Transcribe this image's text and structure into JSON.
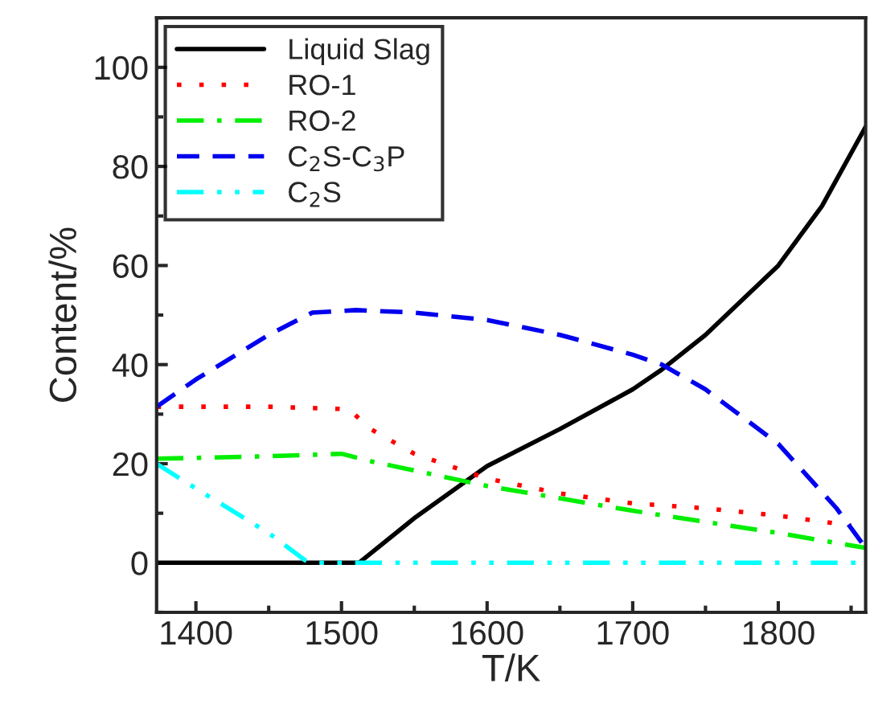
{
  "chart_data": {
    "type": "line",
    "xlabel": "T/K",
    "ylabel": "Content/%",
    "xlim": [
      1373,
      1860
    ],
    "ylim": [
      -10,
      110
    ],
    "xticks": [
      1400,
      1500,
      1600,
      1700,
      1800
    ],
    "yticks": [
      0,
      20,
      40,
      60,
      80,
      100
    ],
    "grid": false,
    "legend": "top left",
    "series": [
      {
        "name": "Liquid Slag",
        "color": "#000000",
        "line_style": "solid",
        "x": [
          1373,
          1450,
          1512,
          1550,
          1600,
          1650,
          1700,
          1720,
          1750,
          1800,
          1830,
          1860
        ],
        "values": [
          0,
          0,
          0,
          9,
          19.5,
          27,
          35,
          39,
          46,
          60,
          72,
          88
        ]
      },
      {
        "name": "RO-1",
        "color": "#ff0000",
        "line_style": "dotted",
        "x": [
          1373,
          1450,
          1505,
          1520,
          1550,
          1600,
          1650,
          1700,
          1750,
          1800,
          1850
        ],
        "values": [
          31.5,
          31.5,
          31,
          27,
          22,
          17,
          14,
          12,
          11,
          9.5,
          7.5
        ]
      },
      {
        "name": "RO-2",
        "color": "#00ee00",
        "line_style": "dashdot",
        "x": [
          1373,
          1450,
          1500,
          1520,
          1600,
          1700,
          1800,
          1860
        ],
        "values": [
          21,
          21.5,
          22,
          20.5,
          15.5,
          10.5,
          6,
          3
        ]
      },
      {
        "name": "C$_{2}$S-C$_{3}$P",
        "color": "#0000ee",
        "line_style": "dashed",
        "x": [
          1373,
          1400,
          1450,
          1480,
          1510,
          1550,
          1600,
          1650,
          1700,
          1720,
          1750,
          1800,
          1840,
          1860
        ],
        "values": [
          31.5,
          37,
          46,
          50.5,
          51,
          50.5,
          49,
          46,
          42,
          40,
          35,
          24,
          11,
          3
        ]
      },
      {
        "name": "C$_{2}$S",
        "color": "#00ffff",
        "line_style": "dashdotdot",
        "x": [
          1373,
          1400,
          1450,
          1475,
          1480,
          1600,
          1860
        ],
        "values": [
          20,
          15,
          6,
          0.5,
          0,
          0,
          0
        ]
      }
    ]
  }
}
